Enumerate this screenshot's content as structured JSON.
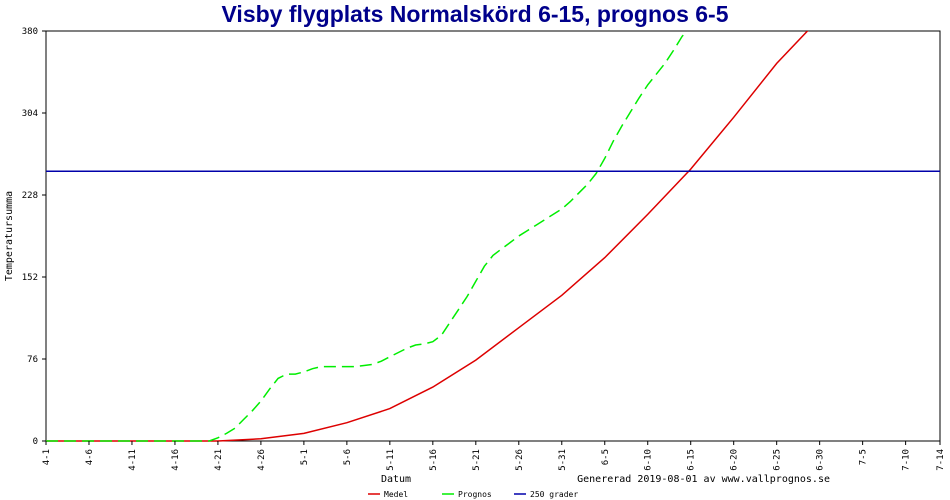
{
  "chart_data": {
    "type": "line",
    "title": "Visby flygplats Normalskörd 6-15, prognos 6-5",
    "xlabel": "Datum",
    "ylabel": "Temperatursumma",
    "footer": "Genererad 2019-08-01 av www.vallprognos.se",
    "ylim": [
      0,
      380
    ],
    "yticks": [
      "0",
      "76",
      "152",
      "228",
      "304",
      "380"
    ],
    "x_start": "4-1",
    "x_end": "7-14",
    "xticks": [
      "4-1",
      "4-6",
      "4-11",
      "4-16",
      "4-21",
      "4-26",
      "5-1",
      "5-6",
      "5-11",
      "5-16",
      "5-21",
      "5-26",
      "5-31",
      "6-5",
      "6-10",
      "6-15",
      "6-20",
      "6-25",
      "6-30",
      "7-5",
      "7-10",
      "7-14"
    ],
    "grid": false,
    "legend_position": "bottom",
    "series": [
      {
        "name": "Medel",
        "color": "#dd0000",
        "style": "solid",
        "points": [
          [
            "4-1",
            0
          ],
          [
            "4-21",
            0
          ],
          [
            "4-26",
            2
          ],
          [
            "5-1",
            7
          ],
          [
            "5-6",
            17
          ],
          [
            "5-11",
            30
          ],
          [
            "5-16",
            50
          ],
          [
            "5-21",
            75
          ],
          [
            "5-26",
            105
          ],
          [
            "5-31",
            135
          ],
          [
            "6-5",
            170
          ],
          [
            "6-10",
            210
          ],
          [
            "6-15",
            252
          ],
          [
            "6-20",
            300
          ],
          [
            "6-25",
            350
          ],
          [
            "6-30",
            392
          ]
        ]
      },
      {
        "name": "Prognos",
        "color": "#00ee00",
        "style": "dashed",
        "points": [
          [
            "4-1",
            0
          ],
          [
            "4-20",
            0
          ],
          [
            "4-21",
            3
          ],
          [
            "4-22",
            7
          ],
          [
            "4-23",
            12
          ],
          [
            "4-24",
            20
          ],
          [
            "4-25",
            28
          ],
          [
            "4-26",
            37
          ],
          [
            "4-27",
            48
          ],
          [
            "4-28",
            58
          ],
          [
            "4-29",
            62
          ],
          [
            "4-30",
            62
          ],
          [
            "5-1",
            64
          ],
          [
            "5-2",
            67
          ],
          [
            "5-3",
            69
          ],
          [
            "5-4",
            69
          ],
          [
            "5-5",
            69
          ],
          [
            "5-6",
            69
          ],
          [
            "5-7",
            69
          ],
          [
            "5-8",
            70
          ],
          [
            "5-9",
            71
          ],
          [
            "5-10",
            74
          ],
          [
            "5-11",
            78
          ],
          [
            "5-12",
            82
          ],
          [
            "5-13",
            86
          ],
          [
            "5-14",
            89
          ],
          [
            "5-15",
            90
          ],
          [
            "5-16",
            92
          ],
          [
            "5-17",
            98
          ],
          [
            "5-18",
            110
          ],
          [
            "5-19",
            122
          ],
          [
            "5-20",
            134
          ],
          [
            "5-21",
            148
          ],
          [
            "5-22",
            162
          ],
          [
            "5-23",
            172
          ],
          [
            "5-24",
            178
          ],
          [
            "5-25",
            184
          ],
          [
            "5-26",
            190
          ],
          [
            "5-27",
            195
          ],
          [
            "5-28",
            200
          ],
          [
            "5-29",
            205
          ],
          [
            "5-30",
            210
          ],
          [
            "5-31",
            215
          ],
          [
            "6-1",
            222
          ],
          [
            "6-2",
            230
          ],
          [
            "6-3",
            238
          ],
          [
            "6-4",
            248
          ],
          [
            "6-5",
            262
          ],
          [
            "6-6",
            278
          ],
          [
            "6-7",
            292
          ],
          [
            "6-8",
            305
          ],
          [
            "6-9",
            318
          ],
          [
            "6-10",
            330
          ],
          [
            "6-11",
            340
          ],
          [
            "6-12",
            350
          ],
          [
            "6-13",
            362
          ],
          [
            "6-14",
            375
          ],
          [
            "6-15",
            384
          ]
        ]
      },
      {
        "name": "250 grader",
        "color": "#0000aa",
        "style": "solid",
        "points": [
          [
            "4-1",
            250
          ],
          [
            "7-14",
            250
          ]
        ]
      }
    ]
  }
}
